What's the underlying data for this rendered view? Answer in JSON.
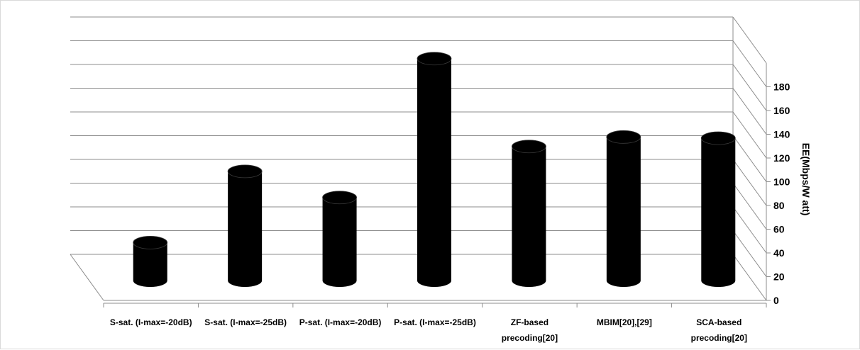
{
  "chart_data": {
    "type": "bar",
    "style": "3d-cylinder",
    "title": "",
    "xlabel": "",
    "ylabel": "EE(Mbps/W att)",
    "ylim": [
      0,
      190
    ],
    "yticks": [
      0,
      20,
      40,
      60,
      80,
      100,
      120,
      140,
      160,
      180
    ],
    "grid": true,
    "legend": "none",
    "bar_color": "#000000",
    "categories": [
      [
        "S-sat. (I-max=-20dB)"
      ],
      [
        "S-sat. (I-max=-25dB)"
      ],
      [
        "P-sat. (I-max=-20dB)"
      ],
      [
        "P-sat. (I-max=-25dB)"
      ],
      [
        "ZF-based",
        "precoding[20]"
      ],
      [
        "MBIM[20],[29]"
      ],
      [
        "SCA-based",
        "precoding[20]"
      ]
    ],
    "values": [
      32,
      92,
      70,
      187,
      113,
      121,
      120
    ]
  }
}
